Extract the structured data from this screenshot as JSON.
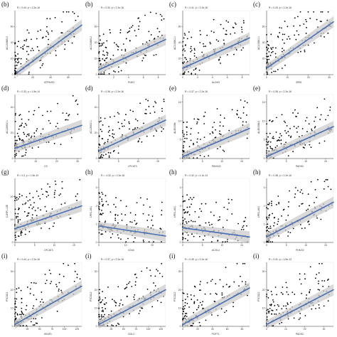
{
  "chart_data": [
    {
      "type": "scatter",
      "panel_label": "(b)",
      "stat_text": "R = 0.44, p < 2.2e-16",
      "xlabel": "ATP6V0C",
      "ylabel": "AC130885.2",
      "xticks": [
        "0",
        "20",
        "40",
        "60"
      ],
      "yticks": [
        "0",
        "20",
        "40",
        "60"
      ],
      "x_range": [
        0,
        75
      ],
      "y_range": [
        0,
        80
      ],
      "fit": {
        "x": [
          2,
          75
        ],
        "y": [
          2,
          62
        ]
      },
      "point_color": "#000000",
      "line_color": "#4a6fb3",
      "band_color": "#cccccc"
    },
    {
      "type": "scatter",
      "panel_label": "(b)",
      "stat_text": "R = 0.32, p < 2.2e-16",
      "xlabel": "PI4K2",
      "ylabel": "AC130885.2",
      "xticks": [
        "0",
        "2",
        "4",
        "6",
        "8"
      ],
      "yticks": [
        "0",
        "20",
        "40",
        "60"
      ],
      "x_range": [
        0,
        9
      ],
      "y_range": [
        0,
        80
      ],
      "fit": {
        "x": [
          0,
          9
        ],
        "y": [
          6,
          44
        ]
      },
      "point_color": "#000000",
      "line_color": "#4a6fb3",
      "band_color": "#cccccc"
    },
    {
      "type": "scatter",
      "panel_label": "(c)",
      "stat_text": "R = 0.41, p < 2.2e-16",
      "xlabel": "ALDH3",
      "ylabel": "AC100861.1",
      "xticks": [
        "0",
        "2",
        "4",
        "6",
        "8"
      ],
      "yticks": [
        "0",
        "20",
        "40",
        "60"
      ],
      "x_range": [
        0,
        9
      ],
      "y_range": [
        0,
        80
      ],
      "fit": {
        "x": [
          0,
          9
        ],
        "y": [
          8,
          46
        ]
      },
      "point_color": "#000000",
      "line_color": "#4a6fb3",
      "band_color": "#cccccc"
    },
    {
      "type": "scatter",
      "panel_label": "(c)",
      "stat_text": "R = 0.43, p < 2.2e-16",
      "xlabel": "ZEB1",
      "ylabel": "AC100861.1",
      "xticks": [
        "0",
        "10",
        "20",
        "30"
      ],
      "yticks": [
        "0",
        "20",
        "40",
        "60"
      ],
      "x_range": [
        0,
        32
      ],
      "y_range": [
        0,
        80
      ],
      "fit": {
        "x": [
          0,
          32
        ],
        "y": [
          8,
          66
        ]
      },
      "point_color": "#000000",
      "line_color": "#4a6fb3",
      "band_color": "#cccccc"
    },
    {
      "type": "scatter",
      "panel_label": "(d)",
      "stat_text": "R = 0.33, p = 1.5e-14",
      "xlabel": "CS",
      "ylabel": "AC126530.1",
      "xticks": [
        "0",
        "10",
        "20",
        "30"
      ],
      "yticks": [
        "0",
        "20",
        "40"
      ],
      "x_range": [
        0,
        32
      ],
      "y_range": [
        0,
        50
      ],
      "fit": {
        "x": [
          0,
          32
        ],
        "y": [
          8,
          26
        ]
      },
      "point_color": "#000000",
      "line_color": "#4a6fb3",
      "band_color": "#cccccc"
    },
    {
      "type": "scatter",
      "panel_label": "(d)",
      "stat_text": "R = 0.36, p < 2.2e-16",
      "xlabel": "LPCAT3",
      "ylabel": "AC126530.1",
      "xticks": [
        "0",
        "5",
        "10",
        "15"
      ],
      "yticks": [
        "0",
        "20",
        "40"
      ],
      "x_range": [
        0,
        17
      ],
      "y_range": [
        0,
        50
      ],
      "fit": {
        "x": [
          0,
          17
        ],
        "y": [
          6,
          30
        ]
      },
      "point_color": "#000000",
      "line_color": "#4a6fb3",
      "band_color": "#cccccc"
    },
    {
      "type": "scatter",
      "panel_label": "(e)",
      "stat_text": "R = 0.37, p < 2.2e-16",
      "xlabel": "PANX22",
      "ylabel": "AL450384",
      "xticks": [
        "0",
        "5",
        "10",
        "15"
      ],
      "yticks": [
        "0",
        "5",
        "10",
        "15"
      ],
      "x_range": [
        0,
        17
      ],
      "y_range": [
        0,
        17
      ],
      "fit": {
        "x": [
          0,
          17
        ],
        "y": [
          0.5,
          8
        ]
      },
      "point_color": "#000000",
      "line_color": "#4a6fb3",
      "band_color": "#cccccc"
    },
    {
      "type": "scatter",
      "panel_label": "(e)",
      "stat_text": "R = 0.35, p < 2.2e-16",
      "xlabel": "PADS2",
      "ylabel": "AL450384.2",
      "xticks": [
        "0",
        "5",
        "10",
        "15"
      ],
      "yticks": [
        "0",
        "5",
        "10",
        "15"
      ],
      "x_range": [
        0,
        17
      ],
      "y_range": [
        0,
        17
      ],
      "fit": {
        "x": [
          0,
          17
        ],
        "y": [
          0.5,
          8.5
        ]
      },
      "point_color": "#000000",
      "line_color": "#4a6fb3",
      "band_color": "#cccccc"
    },
    {
      "type": "scatter",
      "panel_label": "(g)",
      "stat_text": "R = 0.3, p = 1.5e-10",
      "xlabel": "LPCAT3",
      "ylabel": "C1RP1-1ZE",
      "xticks": [
        "0",
        "5",
        "10",
        "15"
      ],
      "yticks": [
        "0",
        "10",
        "20"
      ],
      "x_range": [
        0,
        17
      ],
      "y_range": [
        0,
        28
      ],
      "fit": {
        "x": [
          0,
          17
        ],
        "y": [
          6,
          16
        ]
      },
      "point_color": "#000000",
      "line_color": "#4a6fb3",
      "band_color": "#cccccc"
    },
    {
      "type": "scatter",
      "panel_label": "(h)",
      "stat_text": "R = -0.32, p = 2.2e-16",
      "xlabel": "CD44",
      "ylabel": "LPR1-AS1",
      "xticks": [
        "0",
        "10",
        "20"
      ],
      "yticks": [
        "0",
        "1",
        "2",
        "3"
      ],
      "x_range": [
        0,
        25
      ],
      "y_range": [
        0,
        3.5
      ],
      "fit": {
        "x": [
          0,
          25
        ],
        "y": [
          0.9,
          0.35
        ]
      },
      "point_color": "#000000",
      "line_color": "#4a6fb3",
      "band_color": "#cccccc"
    },
    {
      "type": "scatter",
      "panel_label": "(h)",
      "stat_text": "R = 0.32, p = 4.1e-13",
      "xlabel": "ACSL4",
      "ylabel": "LPR1-AS1",
      "xticks": [
        "0",
        "5",
        "10",
        "15"
      ],
      "yticks": [
        "0",
        "1",
        "2",
        "3"
      ],
      "x_range": [
        0,
        17
      ],
      "y_range": [
        0,
        3.5
      ],
      "fit": {
        "x": [
          0,
          17
        ],
        "y": [
          0.8,
          0.3
        ]
      },
      "point_color": "#000000",
      "line_color": "#4a6fb3",
      "band_color": "#cccccc"
    },
    {
      "type": "scatter",
      "panel_label": "(h)",
      "stat_text": "R = 0.38, p < 2.2e-16",
      "xlabel": "PHKG2",
      "ylabel": "LPR1-AS1",
      "xticks": [
        "0",
        "5",
        "10",
        "15"
      ],
      "yticks": [
        "0",
        "1",
        "2",
        "3"
      ],
      "x_range": [
        0,
        17
      ],
      "y_range": [
        0,
        3.5
      ],
      "fit": {
        "x": [
          0,
          17
        ],
        "y": [
          0.3,
          2.2
        ]
      },
      "point_color": "#000000",
      "line_color": "#4a6fb3",
      "band_color": "#cccccc"
    },
    {
      "type": "scatter",
      "panel_label": "(i)",
      "stat_text": "R = 0.44, p = 2.2e-16",
      "xlabel": "KEAP1",
      "ylabel": "PTCSC2",
      "xticks": [
        "25",
        "50",
        "75",
        "100",
        "125"
      ],
      "yticks": [
        "0",
        "10",
        "20",
        "30"
      ],
      "x_range": [
        0,
        135
      ],
      "y_range": [
        0,
        35
      ],
      "fit": {
        "x": [
          0,
          135
        ],
        "y": [
          1,
          22
        ]
      },
      "point_color": "#000000",
      "line_color": "#4a6fb3",
      "band_color": "#cccccc"
    },
    {
      "type": "scatter",
      "panel_label": "(i)",
      "stat_text": "R = 0.37, p < 2.2e-16",
      "xlabel": "GOLC",
      "ylabel": "PTCSC2",
      "xticks": [
        "25",
        "50",
        "75",
        "100",
        "125"
      ],
      "yticks": [
        "0",
        "10",
        "20",
        "30"
      ],
      "x_range": [
        0,
        135
      ],
      "y_range": [
        0,
        35
      ],
      "fit": {
        "x": [
          0,
          135
        ],
        "y": [
          1,
          20
        ]
      },
      "point_color": "#000000",
      "line_color": "#4a6fb3",
      "band_color": "#cccccc"
    },
    {
      "type": "scatter",
      "panel_label": "(i)",
      "stat_text": "R = 0.39, p < 2.2e-16",
      "xlabel": "FDFT1",
      "ylabel": "PTCSC2",
      "xticks": [
        "0",
        "20",
        "40",
        "60",
        "80"
      ],
      "yticks": [
        "0",
        "10",
        "20",
        "30"
      ],
      "x_range": [
        0,
        90
      ],
      "y_range": [
        0,
        35
      ],
      "fit": {
        "x": [
          0,
          90
        ],
        "y": [
          1,
          21
        ]
      },
      "point_color": "#000000",
      "line_color": "#4a6fb3",
      "band_color": "#cccccc"
    },
    {
      "type": "scatter",
      "panel_label": "(i)",
      "stat_text": "R = 0.31, p = 1.5e-13",
      "xlabel": "PADS2",
      "ylabel": "PTCSC2",
      "xticks": [
        "0",
        "10",
        "20",
        "30"
      ],
      "yticks": [
        "0",
        "10",
        "20",
        "30"
      ],
      "x_range": [
        0,
        35
      ],
      "y_range": [
        0,
        35
      ],
      "fit": {
        "x": [
          0,
          35
        ],
        "y": [
          1,
          20
        ]
      },
      "point_color": "#000000",
      "line_color": "#4a6fb3",
      "band_color": "#cccccc"
    }
  ]
}
